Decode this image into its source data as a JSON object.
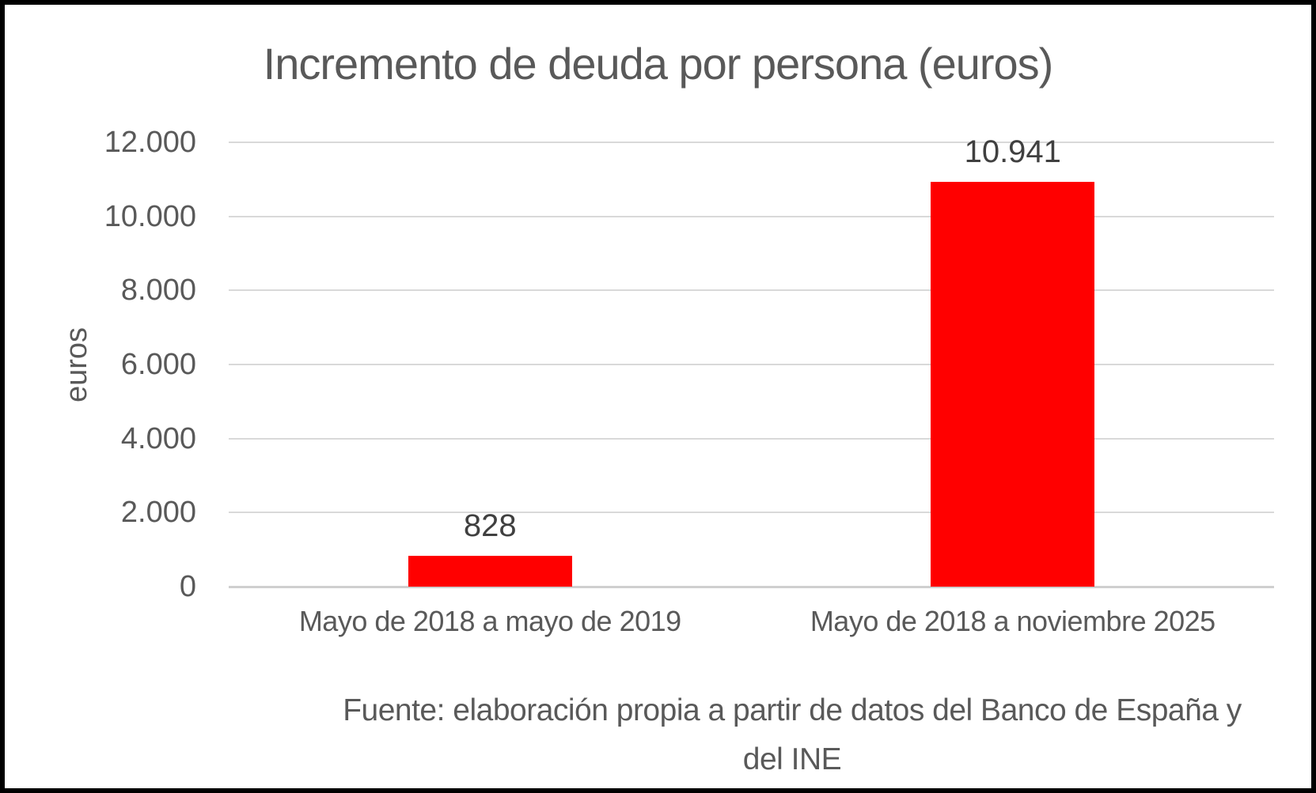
{
  "frame": {
    "background": "#ffffff",
    "border_color": "#000000"
  },
  "chart_data": {
    "type": "bar",
    "title": "Incremento de deuda por persona (euros)",
    "xlabel": "",
    "ylabel": "euros",
    "categories": [
      "Mayo de 2018 a mayo de 2019",
      "Mayo de 2018 a noviembre 2025"
    ],
    "values": [
      828,
      10941
    ],
    "value_labels": [
      "828",
      "10.941"
    ],
    "ylim": [
      0,
      12000
    ],
    "yticks": [
      0,
      2000,
      4000,
      6000,
      8000,
      10000,
      12000
    ],
    "ytick_labels": [
      "0",
      "2.000",
      "4.000",
      "6.000",
      "8.000",
      "10.000",
      "12.000"
    ],
    "grid": "horizontal",
    "legend": "none",
    "colors": {
      "bar": "#ff0000",
      "gridline": "#d9d9d9",
      "axis_line": "#cfcfcf",
      "title_text": "#595959",
      "tick_text": "#595959",
      "value_label_text": "#404040"
    }
  },
  "source_note": {
    "line1": "Fuente: elaboración propia a partir de datos del Banco de España y",
    "line2": "del INE"
  }
}
